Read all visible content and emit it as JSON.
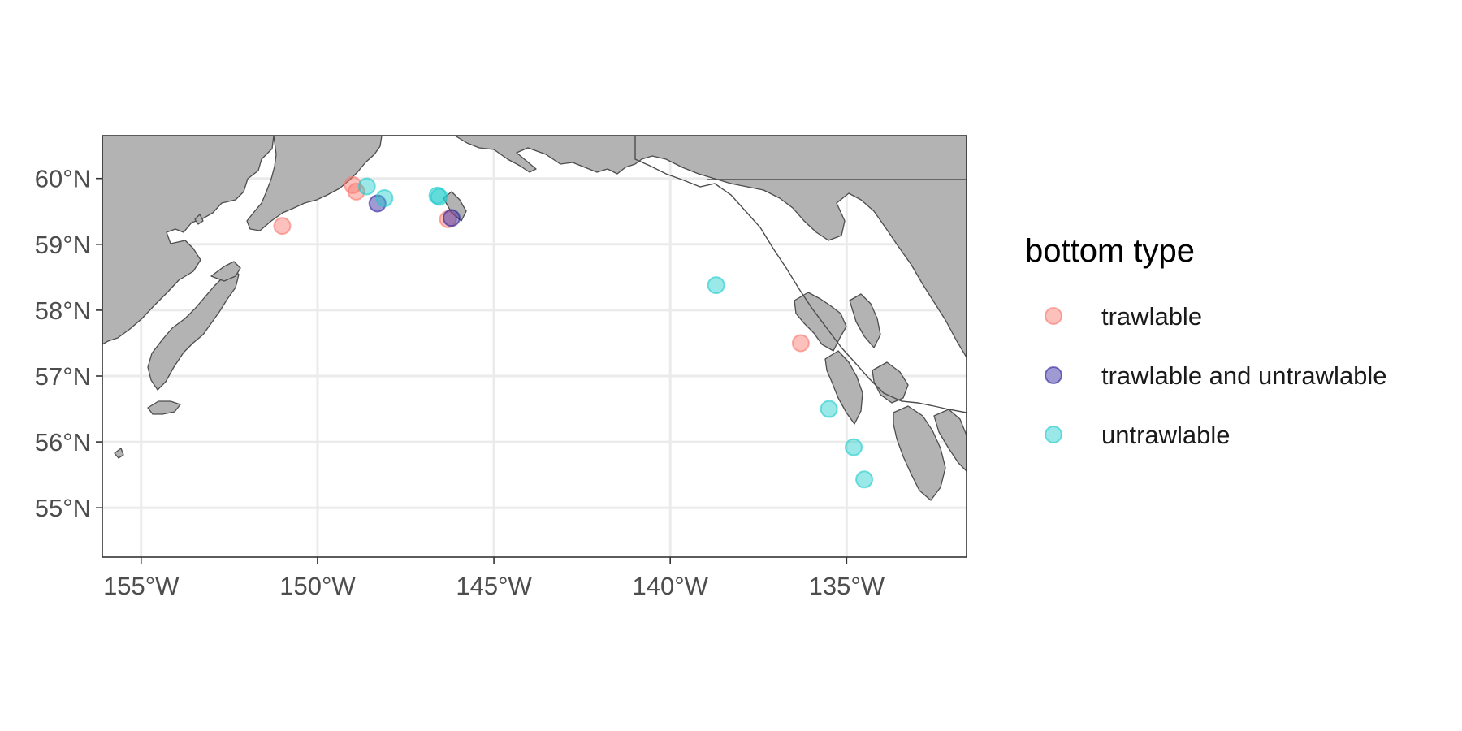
{
  "chart_data": {
    "type": "scatter",
    "subtype": "map",
    "region": "Gulf of Alaska",
    "xlim": [
      -156.1,
      -131.6
    ],
    "ylim": [
      54.25,
      60.65
    ],
    "x_ticks": [
      {
        "value": -155,
        "label": "155°W"
      },
      {
        "value": -150,
        "label": "150°W"
      },
      {
        "value": -145,
        "label": "145°W"
      },
      {
        "value": -140,
        "label": "140°W"
      },
      {
        "value": -135,
        "label": "135°W"
      }
    ],
    "y_ticks": [
      {
        "value": 55,
        "label": "55°N"
      },
      {
        "value": 56,
        "label": "56°N"
      },
      {
        "value": 57,
        "label": "57°N"
      },
      {
        "value": 58,
        "label": "58°N"
      },
      {
        "value": 59,
        "label": "59°N"
      },
      {
        "value": 60,
        "label": "60°N"
      }
    ],
    "grid": true,
    "land_color": "#b3b3b3",
    "coast_color": "#4d4d4d",
    "grid_color": "#ebebeb",
    "legend": {
      "title": "bottom type",
      "placement": "right",
      "entries": [
        {
          "label": "trawlable",
          "color": "#F8766D"
        },
        {
          "label": "trawlable and untrawlable",
          "color": "#2D1F9E"
        },
        {
          "label": "untrawlable",
          "color": "#1ECBCB"
        }
      ]
    },
    "series": [
      {
        "name": "trawlable",
        "color": "#F8766D",
        "points": [
          {
            "lon": -151.0,
            "lat": 59.28
          },
          {
            "lon": -149.0,
            "lat": 59.9
          },
          {
            "lon": -148.9,
            "lat": 59.8
          },
          {
            "lon": -146.3,
            "lat": 59.38
          },
          {
            "lon": -136.3,
            "lat": 57.5
          }
        ]
      },
      {
        "name": "trawlable and untrawlable",
        "color": "#2D1F9E",
        "points": [
          {
            "lon": -148.3,
            "lat": 59.62
          },
          {
            "lon": -146.2,
            "lat": 59.4
          }
        ]
      },
      {
        "name": "untrawlable",
        "color": "#1ECBCB",
        "points": [
          {
            "lon": -148.6,
            "lat": 59.88
          },
          {
            "lon": -148.1,
            "lat": 59.7
          },
          {
            "lon": -146.6,
            "lat": 59.74
          },
          {
            "lon": -146.55,
            "lat": 59.72
          },
          {
            "lon": -138.7,
            "lat": 58.38
          },
          {
            "lon": -135.5,
            "lat": 56.5
          },
          {
            "lon": -134.8,
            "lat": 55.92
          },
          {
            "lon": -134.5,
            "lat": 55.43
          }
        ]
      }
    ]
  }
}
